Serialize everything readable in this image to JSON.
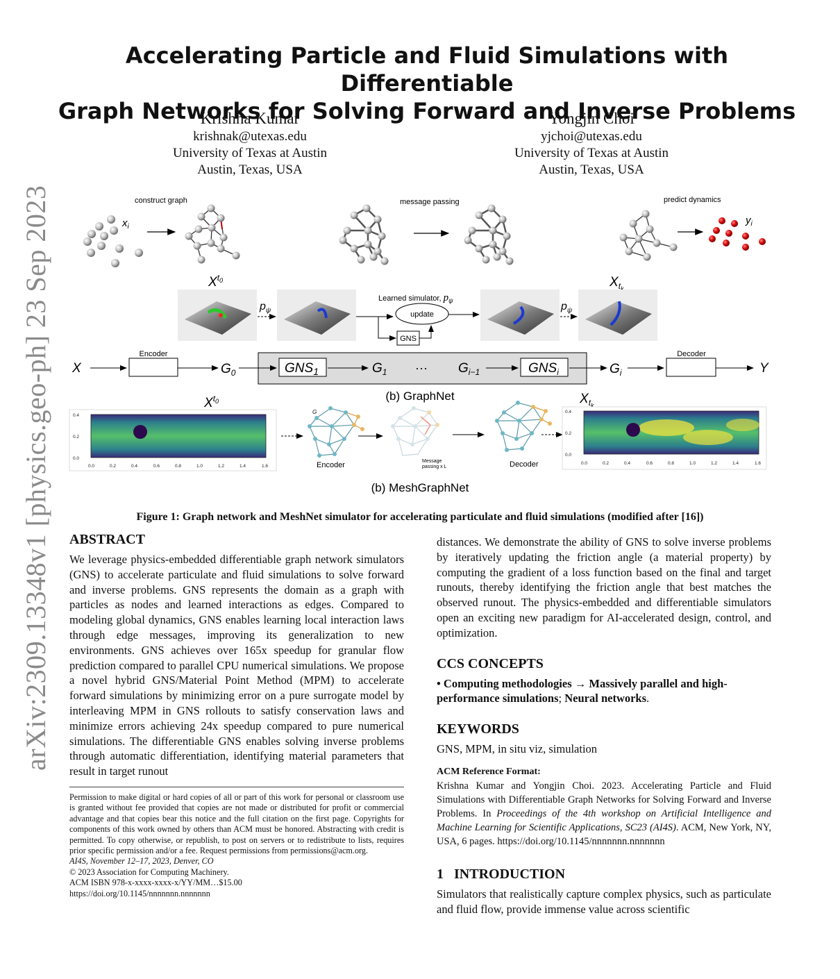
{
  "sidebar": {
    "arxiv_id": "arXiv:2309.13348v1  [physics.geo-ph]  23 Sep 2023"
  },
  "paper": {
    "title_line1": "Accelerating Particle and Fluid Simulations with Differentiable",
    "title_line2": "Graph Networks for Solving Forward and Inverse Problems",
    "authors": [
      {
        "name": "Krishna Kumar",
        "email": "krishnak@utexas.edu",
        "affiliation": "University of Texas at Austin",
        "location": "Austin, Texas, USA"
      },
      {
        "name": "Yongjin Choi",
        "email": "yjchoi@utexas.edu",
        "affiliation": "University of Texas at Austin",
        "location": "Austin, Texas, USA"
      }
    ]
  },
  "figure": {
    "row1": {
      "construct": "construct graph",
      "message": "message passing",
      "predict": "predict dynamics",
      "xi": "x",
      "xi_sub": "i",
      "yi": "y",
      "yi_sub": "i"
    },
    "row2": {
      "x_t0": "X",
      "x_t0_sup": "t",
      "x_t0_sup2": "0",
      "x_tk": "X",
      "x_tk_sub": "t",
      "x_tk_sub2": "k",
      "p_psi": "p",
      "p_psi_sub": "ψ",
      "learned": "Learned simulator, ",
      "update": "update",
      "gns": "GNS"
    },
    "row3": {
      "X": "X",
      "encoder": "Encoder",
      "G0": "G",
      "G0_sub": "0",
      "gns1": "GNS",
      "gns1_sub": "1",
      "G1": "G",
      "G1_sub": "1",
      "dots": "···",
      "Gim1": "G",
      "Gim1_sub": "i−1",
      "gnsi": "GNS",
      "gnsi_sub": "i",
      "Gi": "G",
      "Gi_sub": "i",
      "decoder": "Decoder",
      "Y": "Y",
      "label_b1": "(b) GraphNet"
    },
    "row4": {
      "x_t0": "X",
      "x_tk": "X",
      "G_label": "G",
      "encoder": "Encoder",
      "message": "Message",
      "message2": "passing x L",
      "decoder": "Decoder",
      "label_b2": "(b) MeshGraphNet",
      "yticks": [
        "0.4",
        "0.2",
        "0.0"
      ],
      "xticks": [
        "0.0",
        "0.2",
        "0.4",
        "0.6",
        "0.8",
        "1.0",
        "1.2",
        "1.4",
        "1.6"
      ]
    },
    "caption": "Figure 1: Graph network and MeshNet simulator for accelerating particulate and fluid simulations (modified after [16])"
  },
  "abstract": {
    "heading": "ABSTRACT",
    "text": "We leverage physics-embedded differentiable graph network simulators (GNS) to accelerate particulate and fluid simulations to solve forward and inverse problems. GNS represents the domain as a graph with particles as nodes and learned interactions as edges. Compared to modeling global dynamics, GNS enables learning local interaction laws through edge messages, improving its generalization to new environments. GNS achieves over 165x speedup for granular flow prediction compared to parallel CPU numerical simulations. We propose a novel hybrid GNS/Material Point Method (MPM) to accelerate forward simulations by minimizing error on a pure surrogate model by interleaving MPM in GNS rollouts to satisfy conservation laws and minimize errors achieving 24x speedup compared to pure numerical simulations. The differentiable GNS enables solving inverse problems through automatic differentiation, identifying material parameters that result in target runout",
    "text_cont": "distances. We demonstrate the ability of GNS to solve inverse problems by iteratively updating the friction angle (a material property) by computing the gradient of a loss function based on the final and target runouts, thereby identifying the friction angle that best matches the observed runout. The physics-embedded and differentiable simulators open an exciting new paradigm for AI-accelerated design, control, and optimization."
  },
  "footnote": {
    "permission": "Permission to make digital or hard copies of all or part of this work for personal or classroom use is granted without fee provided that copies are not made or distributed for profit or commercial advantage and that copies bear this notice and the full citation on the first page. Copyrights for components of this work owned by others than ACM must be honored. Abstracting with credit is permitted. To copy otherwise, or republish, to post on servers or to redistribute to lists, requires prior specific permission and/or a fee. Request permissions from permissions@acm.org.",
    "venue": "AI4S, November 12–17, 2023, Denver, CO",
    "copyright": "© 2023 Association for Computing Machinery.",
    "isbn": "ACM ISBN 978-x-xxxx-xxxx-x/YY/MM…$15.00",
    "doi": "https://doi.org/10.1145/nnnnnnn.nnnnnnn"
  },
  "ccs": {
    "heading": "CCS CONCEPTS",
    "bullet": "• ",
    "item1": "Computing methodologies",
    "arrow": " → ",
    "item2": "Massively parallel and high-performance simulations",
    "sep": "; ",
    "item3": "Neural networks",
    "end": "."
  },
  "keywords": {
    "heading": "KEYWORDS",
    "text": "GNS, MPM, in situ viz, simulation"
  },
  "acm_ref": {
    "heading": "ACM Reference Format:",
    "text1": "Krishna Kumar and Yongjin Choi. 2023. Accelerating Particle and Fluid Simulations with Differentiable Graph Networks for Solving Forward and Inverse Problems. In ",
    "text_italic": "Proceedings of the 4th workshop on Artificial Intelligence and Machine Learning for Scientific Applications, SC23 (AI4S)",
    "text2": ". ACM, New York, NY, USA, 6 pages. https://doi.org/10.1145/nnnnnnn.nnnnnnn"
  },
  "intro": {
    "number": "1",
    "heading": "INTRODUCTION",
    "text": "Simulators that realistically capture complex physics, such as particulate and fluid flow, provide immense value across scientific"
  },
  "colors": {
    "particle": "#b0b0b0",
    "red_particle": "#dd1111",
    "viridis_dark": "#44015a",
    "viridis_mid": "#21918c",
    "viridis_light": "#fde725"
  }
}
